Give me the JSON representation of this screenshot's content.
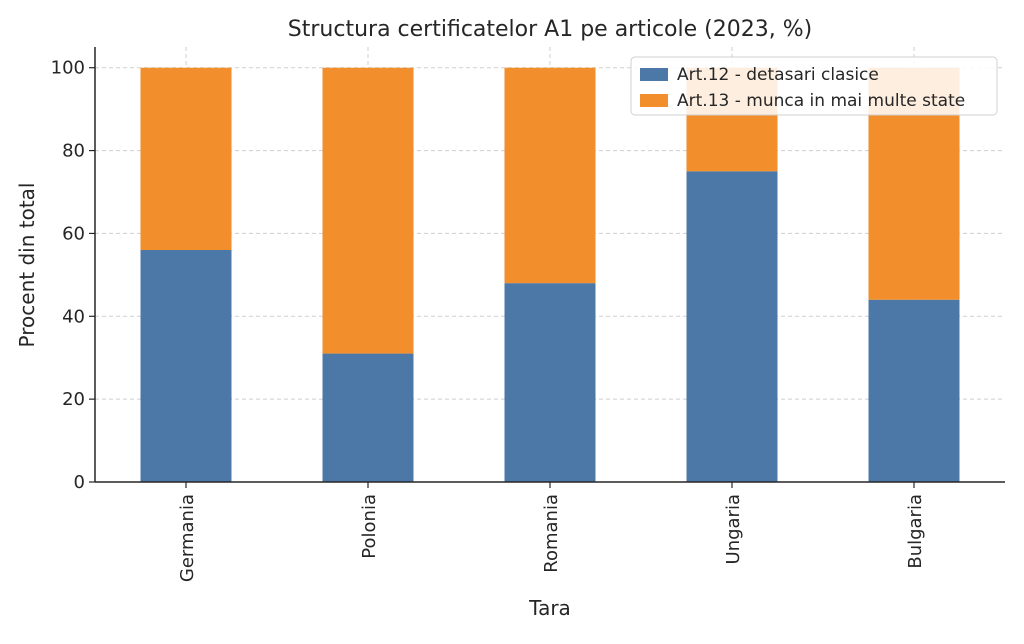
{
  "chart_data": {
    "type": "bar",
    "stacked": true,
    "title": "Structura certificatelor A1 pe articole (2023, %)",
    "xlabel": "Tara",
    "ylabel": "Procent din total",
    "categories": [
      "Germania",
      "Polonia",
      "Romania",
      "Ungaria",
      "Bulgaria"
    ],
    "series": [
      {
        "name": "Art.12 - detasari clasice",
        "values": [
          56,
          31,
          48,
          75,
          44
        ],
        "color": "#4c78a8"
      },
      {
        "name": "Art.13 - munca in mai multe state",
        "values": [
          44,
          69,
          52,
          25,
          56
        ],
        "color": "#f28e2b"
      }
    ],
    "ylim": [
      0,
      105
    ],
    "yticks": [
      0,
      20,
      40,
      60,
      80,
      100
    ],
    "grid": true,
    "legend_position": "top-right"
  }
}
